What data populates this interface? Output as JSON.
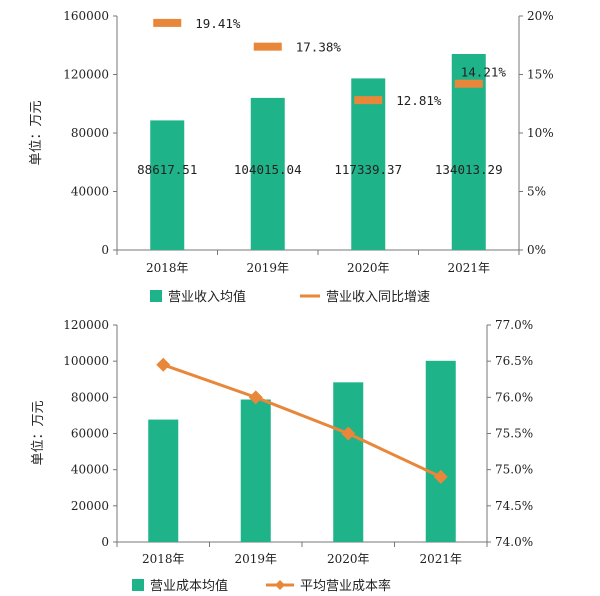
{
  "chart_data": [
    {
      "type": "bar",
      "categories": [
        "2018年",
        "2019年",
        "2020年",
        "2021年"
      ],
      "ylabel": "单位：万元",
      "ylim": [
        0,
        160000
      ],
      "y_ticks": [
        "0",
        "40000",
        "80000",
        "120000",
        "160000"
      ],
      "y2lim": [
        0,
        20
      ],
      "y2_ticks": [
        "0%",
        "5%",
        "10%",
        "15%",
        "20%"
      ],
      "grid": false,
      "legend_position": "bottom",
      "colors": {
        "bar": "#1fb38a",
        "line": "#e8873a"
      },
      "series": [
        {
          "name": "营业收入均值",
          "type": "bar",
          "values": [
            88617.51,
            104015.04,
            117339.37,
            134013.29
          ],
          "labels": [
            "88617.51",
            "104015.04",
            "117339.37",
            "134013.29"
          ]
        },
        {
          "name": "营业收入同比增速",
          "type": "marker",
          "axis": "secondary",
          "values": [
            19.41,
            17.38,
            12.81,
            14.21
          ],
          "labels": [
            "19.41%",
            "17.38%",
            "12.81%",
            "14.21%"
          ]
        }
      ]
    },
    {
      "type": "bar",
      "categories": [
        "2018年",
        "2019年",
        "2020年",
        "2021年"
      ],
      "ylabel": "单位：万元",
      "ylim": [
        0,
        120000
      ],
      "y_ticks": [
        "0",
        "20000",
        "40000",
        "60000",
        "80000",
        "100000",
        "120000"
      ],
      "y2lim": [
        74.0,
        77.0
      ],
      "y2_ticks": [
        "74.0%",
        "74.5%",
        "75.0%",
        "75.5%",
        "76.0%",
        "76.5%",
        "77.0%"
      ],
      "grid": false,
      "legend_position": "bottom",
      "colors": {
        "bar": "#1fb38a",
        "line": "#e8873a"
      },
      "series": [
        {
          "name": "营业成本均值",
          "type": "bar",
          "values": [
            67700,
            78800,
            88300,
            100200
          ]
        },
        {
          "name": "平均营业成本率",
          "type": "line",
          "axis": "secondary",
          "values": [
            76.45,
            76.0,
            75.5,
            74.9
          ]
        }
      ]
    }
  ]
}
